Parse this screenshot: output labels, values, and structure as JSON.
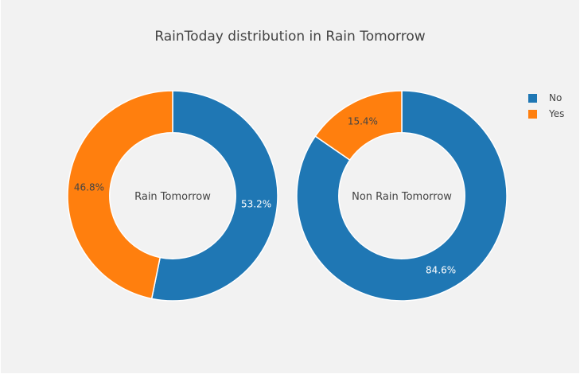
{
  "chart_data": {
    "type": "pie",
    "title": "RainToday distribution in Rain Tomorrow",
    "hole": 0.6,
    "legend": {
      "position": "top-right",
      "entries": [
        {
          "label": "No",
          "color": "#1f77b4"
        },
        {
          "label": "Yes",
          "color": "#ff7f0e"
        }
      ]
    },
    "pies": [
      {
        "name": "Rain Tomorrow",
        "center_label": "Rain Tomorrow",
        "categories": [
          "No",
          "Yes"
        ],
        "values": [
          53.2,
          46.8
        ],
        "labels": [
          "53.2%",
          "46.8%"
        ]
      },
      {
        "name": "Non Rain Tomorrow",
        "center_label": "Non Rain Tomorrow",
        "categories": [
          "No",
          "Yes"
        ],
        "values": [
          84.6,
          15.4
        ],
        "labels": [
          "84.6%",
          "15.4%"
        ]
      }
    ]
  },
  "colors": {
    "background": "#f2f2f2",
    "no": "#1f77b4",
    "yes": "#ff7f0e",
    "text": "#444444"
  }
}
